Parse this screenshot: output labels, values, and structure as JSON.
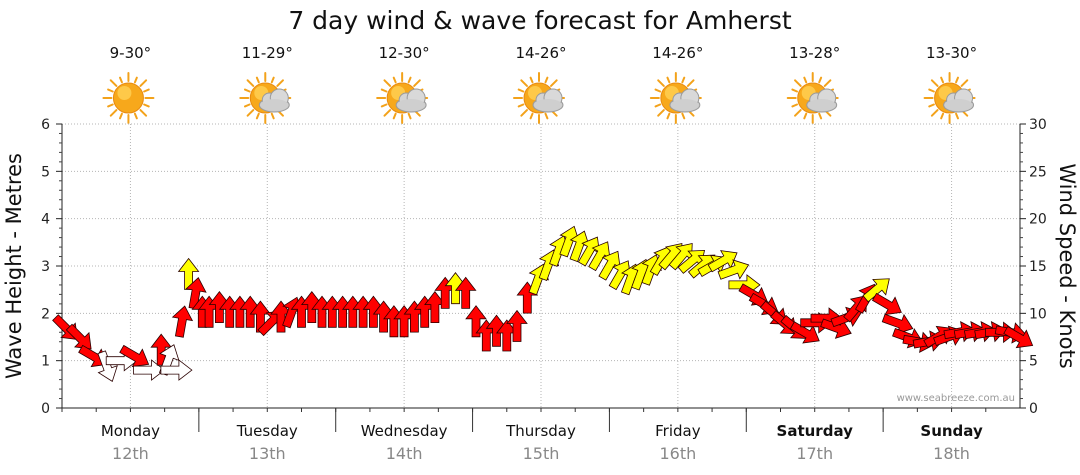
{
  "chart_data": {
    "type": "wind-wave-forecast",
    "title": "7 day wind & wave forecast for Amherst",
    "ylabel_left": "Wave Height - Metres",
    "ylabel_right": "Wind Speed - Knots",
    "ylim_left": [
      0,
      6
    ],
    "ylim_right": [
      0,
      30
    ],
    "left_ticks": [
      0,
      1,
      2,
      3,
      4,
      5,
      6
    ],
    "right_ticks": [
      0,
      5,
      10,
      15,
      20,
      25,
      30
    ],
    "credit": "www.seabreeze.com.au",
    "days": [
      {
        "name": "Monday",
        "date": "12th",
        "temp": "9-30°",
        "weather": "sunny",
        "bold": false
      },
      {
        "name": "Tuesday",
        "date": "13th",
        "temp": "11-29°",
        "weather": "partly-cloudy",
        "bold": false
      },
      {
        "name": "Wednesday",
        "date": "14th",
        "temp": "12-30°",
        "weather": "partly-cloudy",
        "bold": false
      },
      {
        "name": "Thursday",
        "date": "15th",
        "temp": "14-26°",
        "weather": "partly-cloudy",
        "bold": false
      },
      {
        "name": "Friday",
        "date": "16th",
        "temp": "14-26°",
        "weather": "partly-cloudy",
        "bold": false
      },
      {
        "name": "Saturday",
        "date": "17th",
        "temp": "13-28°",
        "weather": "partly-cloudy",
        "bold": true
      },
      {
        "name": "Sunday",
        "date": "18th",
        "temp": "13-30°",
        "weather": "partly-cloudy",
        "bold": true
      }
    ],
    "wind_colors": {
      "strong": "#ff0000",
      "moderate": "#ffff00",
      "light": "#ffffff"
    },
    "wind_series": [
      {
        "t": 0.05,
        "kn": 8.5,
        "dir": 135
      },
      {
        "t": 0.25,
        "kn": 7.5,
        "dir": 135
      },
      {
        "t": 0.45,
        "kn": 5.5,
        "dir": 120
      },
      {
        "t": 0.65,
        "kn": 4.5,
        "dir": 160
      },
      {
        "t": 0.85,
        "kn": 5,
        "dir": 90
      },
      {
        "t": 1.05,
        "kn": 5.5,
        "dir": 120
      },
      {
        "t": 1.25,
        "kn": 4,
        "dir": 90
      },
      {
        "t": 1.45,
        "kn": 6,
        "dir": 0
      },
      {
        "t": 1.55,
        "kn": 5,
        "dir": 20
      },
      {
        "t": 1.65,
        "kn": 4,
        "dir": 90
      },
      {
        "t": 1.75,
        "kn": 9,
        "dir": 10
      },
      {
        "t": 1.85,
        "kn": 14,
        "dir": 0
      },
      {
        "t": 1.95,
        "kn": 12,
        "dir": 10
      },
      {
        "t": 2.05,
        "kn": 10,
        "dir": 0
      },
      {
        "t": 2.15,
        "kn": 10,
        "dir": 0
      },
      {
        "t": 2.3,
        "kn": 10.5,
        "dir": 0
      },
      {
        "t": 2.45,
        "kn": 10,
        "dir": 0
      },
      {
        "t": 2.6,
        "kn": 10,
        "dir": 0
      },
      {
        "t": 2.75,
        "kn": 10,
        "dir": 0
      },
      {
        "t": 2.9,
        "kn": 9.5,
        "dir": 0
      },
      {
        "t": 3.05,
        "kn": 9,
        "dir": 45
      },
      {
        "t": 3.2,
        "kn": 9.5,
        "dir": 0
      },
      {
        "t": 3.35,
        "kn": 10,
        "dir": 20
      },
      {
        "t": 3.5,
        "kn": 10,
        "dir": 0
      },
      {
        "t": 3.65,
        "kn": 10.5,
        "dir": 0
      },
      {
        "t": 3.8,
        "kn": 10,
        "dir": 0
      },
      {
        "t": 3.95,
        "kn": 10,
        "dir": 0
      },
      {
        "t": 4.1,
        "kn": 10,
        "dir": 0
      },
      {
        "t": 4.25,
        "kn": 10,
        "dir": 0
      },
      {
        "t": 4.4,
        "kn": 10,
        "dir": 0
      },
      {
        "t": 4.55,
        "kn": 10,
        "dir": 0
      },
      {
        "t": 4.7,
        "kn": 9.5,
        "dir": 0
      },
      {
        "t": 4.85,
        "kn": 9,
        "dir": 0
      },
      {
        "t": 5.0,
        "kn": 9,
        "dir": 0
      },
      {
        "t": 5.15,
        "kn": 9.5,
        "dir": 0
      },
      {
        "t": 5.3,
        "kn": 10,
        "dir": 0
      },
      {
        "t": 5.45,
        "kn": 10.5,
        "dir": 0
      },
      {
        "t": 5.6,
        "kn": 12,
        "dir": 0
      },
      {
        "t": 5.75,
        "kn": 12.5,
        "dir": 0
      },
      {
        "t": 5.9,
        "kn": 12,
        "dir": 0
      },
      {
        "t": 6.05,
        "kn": 9,
        "dir": 0
      },
      {
        "t": 6.2,
        "kn": 7.5,
        "dir": 0
      },
      {
        "t": 6.35,
        "kn": 8,
        "dir": 0
      },
      {
        "t": 6.5,
        "kn": 7.5,
        "dir": 0
      },
      {
        "t": 6.65,
        "kn": 8.5,
        "dir": 0
      },
      {
        "t": 6.8,
        "kn": 11.5,
        "dir": 0
      },
      {
        "t": 6.95,
        "kn": 13.5,
        "dir": 20
      },
      {
        "t": 7.1,
        "kn": 15,
        "dir": 20
      },
      {
        "t": 7.25,
        "kn": 16.5,
        "dir": 20
      },
      {
        "t": 7.4,
        "kn": 17.5,
        "dir": 20
      },
      {
        "t": 7.55,
        "kn": 17,
        "dir": 20
      },
      {
        "t": 7.7,
        "kn": 16.5,
        "dir": 30
      },
      {
        "t": 7.85,
        "kn": 16,
        "dir": 30
      },
      {
        "t": 8.0,
        "kn": 15,
        "dir": 30
      },
      {
        "t": 8.15,
        "kn": 14,
        "dir": 30
      },
      {
        "t": 8.3,
        "kn": 13.5,
        "dir": 20
      },
      {
        "t": 8.45,
        "kn": 14,
        "dir": 20
      },
      {
        "t": 8.6,
        "kn": 14.5,
        "dir": 20
      },
      {
        "t": 8.75,
        "kn": 15.5,
        "dir": 30
      },
      {
        "t": 8.9,
        "kn": 16,
        "dir": 40
      },
      {
        "t": 9.05,
        "kn": 16,
        "dir": 40
      },
      {
        "t": 9.2,
        "kn": 15.5,
        "dir": 50
      },
      {
        "t": 9.35,
        "kn": 15,
        "dir": 50
      },
      {
        "t": 9.5,
        "kn": 15,
        "dir": 60
      },
      {
        "t": 9.65,
        "kn": 15.5,
        "dir": 60
      },
      {
        "t": 9.8,
        "kn": 14.5,
        "dir": 70
      },
      {
        "t": 9.95,
        "kn": 13,
        "dir": 90
      },
      {
        "t": 10.1,
        "kn": 12,
        "dir": 120
      },
      {
        "t": 10.25,
        "kn": 11,
        "dir": 120
      },
      {
        "t": 10.4,
        "kn": 10,
        "dir": 130
      },
      {
        "t": 10.55,
        "kn": 9,
        "dir": 130
      },
      {
        "t": 10.7,
        "kn": 8.5,
        "dir": 130
      },
      {
        "t": 10.85,
        "kn": 8,
        "dir": 120
      },
      {
        "t": 11.0,
        "kn": 9,
        "dir": 90
      },
      {
        "t": 11.15,
        "kn": 9.5,
        "dir": 90
      },
      {
        "t": 11.3,
        "kn": 8.5,
        "dir": 110
      },
      {
        "t": 11.45,
        "kn": 9.5,
        "dir": 70
      },
      {
        "t": 11.6,
        "kn": 10.5,
        "dir": 40
      },
      {
        "t": 11.75,
        "kn": 11.5,
        "dir": 30
      },
      {
        "t": 11.9,
        "kn": 12.5,
        "dir": 50
      },
      {
        "t": 12.05,
        "kn": 11,
        "dir": 120
      },
      {
        "t": 12.2,
        "kn": 9,
        "dir": 110
      },
      {
        "t": 12.35,
        "kn": 7.5,
        "dir": 110
      },
      {
        "t": 12.5,
        "kn": 7,
        "dir": 100
      },
      {
        "t": 12.65,
        "kn": 7,
        "dir": 80
      },
      {
        "t": 12.8,
        "kn": 7.5,
        "dir": 60
      },
      {
        "t": 12.95,
        "kn": 7.5,
        "dir": 70
      },
      {
        "t": 13.1,
        "kn": 8,
        "dir": 80
      },
      {
        "t": 13.25,
        "kn": 8,
        "dir": 80
      },
      {
        "t": 13.4,
        "kn": 8,
        "dir": 80
      },
      {
        "t": 13.55,
        "kn": 8,
        "dir": 80
      },
      {
        "t": 13.7,
        "kn": 8,
        "dir": 90
      },
      {
        "t": 13.85,
        "kn": 8,
        "dir": 100
      },
      {
        "t": 13.97,
        "kn": 7.5,
        "dir": 120
      }
    ]
  }
}
